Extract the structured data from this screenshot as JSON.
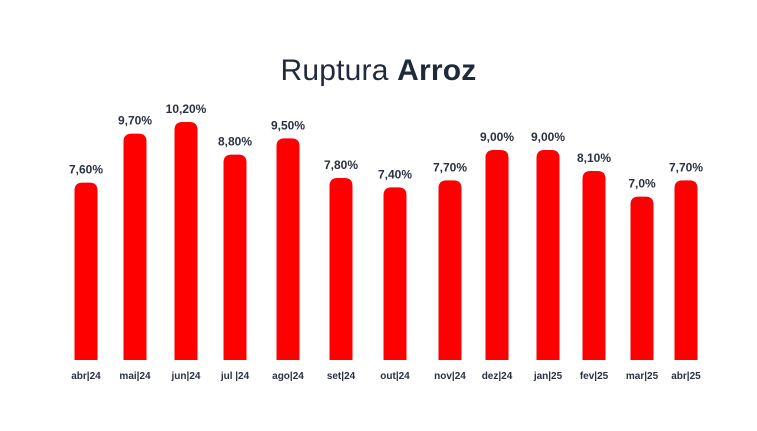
{
  "chart_data": {
    "type": "bar",
    "title_regular": "Ruptura",
    "title_bold": "Arroz",
    "categories": [
      "abr|24",
      "mai|24",
      "jun|24",
      "jul |24",
      "ago|24",
      "set|24",
      "out|24",
      "nov|24",
      "dez|24",
      "jan|25",
      "fev|25",
      "mar|25",
      "abr|25"
    ],
    "values": [
      7.6,
      9.7,
      10.2,
      8.8,
      9.5,
      7.8,
      7.4,
      7.7,
      9.0,
      9.0,
      8.1,
      7.0,
      7.7
    ],
    "value_labels": [
      "7,60%",
      "9,70%",
      "10,20%",
      "8,80%",
      "9,50%",
      "7,80%",
      "7,40%",
      "7,70%",
      "9,00%",
      "9,00%",
      "8,10%",
      "7,0%",
      "7,70%"
    ],
    "unit": "%",
    "ylim": [
      0,
      10.2
    ],
    "grid": false,
    "legend": "none",
    "bar_color": "#ff0000"
  }
}
